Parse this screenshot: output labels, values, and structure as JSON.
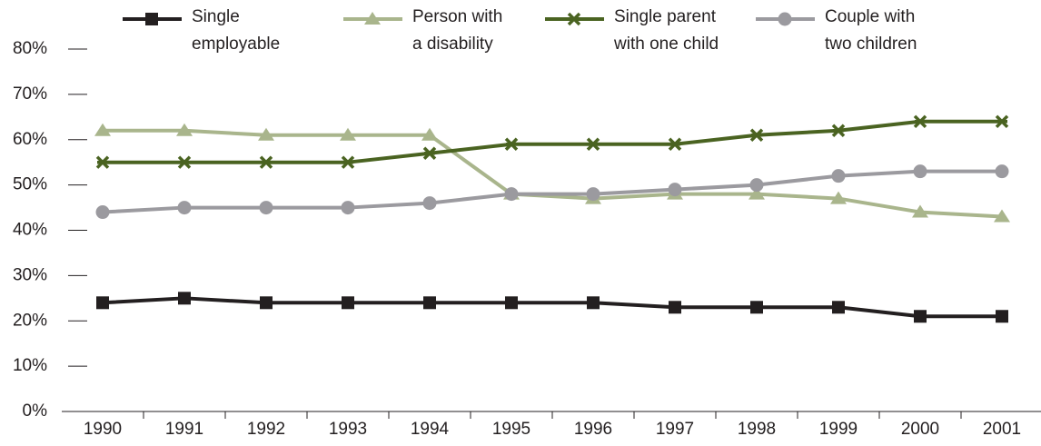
{
  "chart_data": {
    "type": "line",
    "categories": [
      "1990",
      "1991",
      "1992",
      "1993",
      "1994",
      "1995",
      "1996",
      "1997",
      "1998",
      "1999",
      "2000",
      "2001"
    ],
    "series": [
      {
        "name": "Single\nemployable",
        "color": "#231f20",
        "marker": "square",
        "values": [
          24,
          25,
          24,
          24,
          24,
          24,
          24,
          23,
          23,
          23,
          21,
          21
        ]
      },
      {
        "name": "Person with\na disability",
        "color": "#a9b58c",
        "marker": "triangle",
        "values": [
          62,
          62,
          61,
          61,
          61,
          48,
          47,
          48,
          48,
          47,
          44,
          43
        ]
      },
      {
        "name": "Single parent\nwith one child",
        "color": "#4a6321",
        "marker": "cross",
        "values": [
          55,
          55,
          55,
          55,
          57,
          59,
          59,
          59,
          61,
          62,
          64,
          64
        ]
      },
      {
        "name": "Couple with\ntwo children",
        "color": "#9b9a9f",
        "marker": "circle",
        "values": [
          44,
          45,
          45,
          45,
          46,
          48,
          48,
          49,
          50,
          52,
          53,
          53
        ]
      }
    ],
    "ylim": [
      0,
      80
    ],
    "yticks": [
      {
        "value": 0,
        "label": "0%"
      },
      {
        "value": 10,
        "label": "10%"
      },
      {
        "value": 20,
        "label": "20%"
      },
      {
        "value": 30,
        "label": "30%"
      },
      {
        "value": 40,
        "label": "40%"
      },
      {
        "value": 50,
        "label": "50%"
      },
      {
        "value": 60,
        "label": "60%"
      },
      {
        "value": 70,
        "label": "70%"
      },
      {
        "value": 80,
        "label": "80%"
      }
    ],
    "legend": "top"
  }
}
